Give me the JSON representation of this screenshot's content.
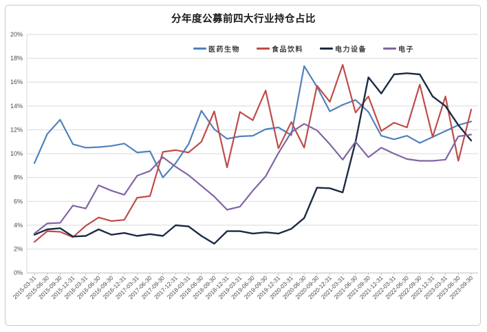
{
  "chart_data": {
    "type": "line",
    "title": "分年度公募前四大行业持仓占比",
    "xlabel": "",
    "ylabel": "",
    "ylim": [
      0,
      20
    ],
    "y_tick_step": 2,
    "y_tick_labels": [
      "0%",
      "2%",
      "4%",
      "6%",
      "8%",
      "10%",
      "12%",
      "14%",
      "16%",
      "18%",
      "20%"
    ],
    "grid": true,
    "legend_position": "top-center",
    "categories": [
      "2015-03-31",
      "2015-06-30",
      "2015-09-30",
      "2015-12-31",
      "2016-03-31",
      "2016-06-30",
      "2016-09-30",
      "2016-12-31",
      "2017-03-31",
      "2017-06-30",
      "2017-09-30",
      "2017-12-31",
      "2018-03-31",
      "2018-06-30",
      "2018-09-30",
      "2018-12-31",
      "2019-03-31",
      "2019-06-30",
      "2019-09-30",
      "2019-12-31",
      "2020-03-31",
      "2020-06-30",
      "2020-09-30",
      "2020-12-31",
      "2021-03-31",
      "2021-06-30",
      "2021-09-30",
      "2021-12-31",
      "2022-03-31",
      "2022-06-30",
      "2022-09-30",
      "2022-12-31",
      "2023-03-31",
      "2023-06-30",
      "2023-09-30"
    ],
    "series": [
      {
        "name": "医药生物",
        "color": "#4F81BD",
        "values": [
          9.2,
          11.65,
          12.85,
          10.8,
          10.5,
          10.55,
          10.65,
          10.85,
          10.1,
          10.2,
          8.0,
          9.2,
          10.8,
          13.6,
          12.05,
          11.25,
          11.45,
          11.5,
          12.05,
          12.2,
          11.55,
          17.35,
          15.6,
          13.55,
          14.1,
          14.5,
          13.5,
          11.5,
          11.2,
          11.5,
          10.9,
          11.4,
          11.9,
          12.4,
          12.7
        ]
      },
      {
        "name": "食品饮料",
        "color": "#BE4B48",
        "values": [
          2.6,
          3.5,
          3.45,
          3.0,
          3.95,
          4.65,
          4.35,
          4.45,
          6.3,
          6.45,
          10.15,
          10.3,
          10.1,
          11.0,
          13.55,
          8.85,
          13.5,
          12.8,
          15.3,
          10.45,
          12.65,
          10.5,
          15.7,
          14.35,
          17.45,
          13.45,
          14.8,
          11.9,
          12.6,
          12.2,
          15.8,
          11.4,
          14.8,
          9.4,
          13.7
        ]
      },
      {
        "name": "电力设备",
        "color": "#1B2A44",
        "values": [
          3.2,
          3.65,
          3.75,
          3.05,
          3.1,
          3.65,
          3.2,
          3.35,
          3.1,
          3.25,
          3.1,
          4.0,
          3.9,
          3.1,
          2.45,
          3.5,
          3.5,
          3.3,
          3.4,
          3.3,
          3.7,
          4.6,
          7.15,
          7.1,
          6.75,
          11.0,
          16.4,
          15.05,
          16.65,
          16.75,
          16.65,
          14.8,
          14.0,
          12.4,
          11.1
        ]
      },
      {
        "name": "电子",
        "color": "#8064A2",
        "values": [
          3.3,
          4.15,
          4.2,
          5.65,
          5.4,
          7.35,
          6.9,
          6.55,
          8.15,
          8.55,
          9.7,
          8.9,
          8.2,
          7.3,
          6.4,
          5.3,
          5.55,
          6.9,
          8.1,
          10.05,
          11.8,
          12.5,
          11.95,
          10.8,
          9.5,
          11.0,
          9.7,
          10.5,
          10.0,
          9.55,
          9.4,
          9.4,
          9.5,
          11.45,
          11.6
        ]
      }
    ],
    "colors": {
      "gridline": "#D9D9D9",
      "axis_line": "#C6C6C6",
      "axis_text": "#4A4A4A",
      "frame_border": "#C9C9C9",
      "background": "#FFFFFF"
    }
  }
}
